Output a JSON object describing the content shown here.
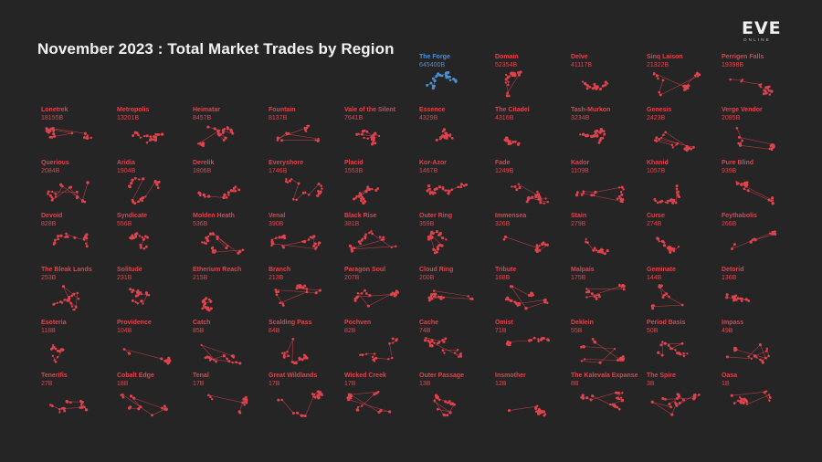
{
  "title": "November 2023 : Total Market Trades by Region",
  "logo": {
    "main": "EVE",
    "sub": "ONLINE"
  },
  "colors": {
    "background": "#252525",
    "region": "#e0434d",
    "highlight": "#4a8fd6",
    "title": "#f2f2f2"
  },
  "chart_data": {
    "type": "small-multiples",
    "title": "November 2023 : Total Market Trades by Region",
    "unit": "B",
    "highlight": "The Forge",
    "regions": [
      {
        "name": "The Forge",
        "value": "645400B"
      },
      {
        "name": "Domain",
        "value": "52354B"
      },
      {
        "name": "Delve",
        "value": "41117B"
      },
      {
        "name": "Sinq Laison",
        "value": "21322B"
      },
      {
        "name": "Perrigen Falls",
        "value": "19398B"
      },
      {
        "name": "Lonetrek",
        "value": "18155B"
      },
      {
        "name": "Metropolis",
        "value": "13201B"
      },
      {
        "name": "Heimatar",
        "value": "8457B"
      },
      {
        "name": "Fountain",
        "value": "8137B"
      },
      {
        "name": "Vale of the Silent",
        "value": "7641B"
      },
      {
        "name": "Essence",
        "value": "4329B"
      },
      {
        "name": "The Citadel",
        "value": "4316B"
      },
      {
        "name": "Tash-Murkon",
        "value": "3234B"
      },
      {
        "name": "Genesis",
        "value": "2423B"
      },
      {
        "name": "Verge Vendor",
        "value": "2095B"
      },
      {
        "name": "Querious",
        "value": "2084B"
      },
      {
        "name": "Aridia",
        "value": "1904B"
      },
      {
        "name": "Derelik",
        "value": "1806B"
      },
      {
        "name": "Everyshore",
        "value": "1746B"
      },
      {
        "name": "Placid",
        "value": "1553B"
      },
      {
        "name": "Kor-Azor",
        "value": "1467B"
      },
      {
        "name": "Fade",
        "value": "1249B"
      },
      {
        "name": "Kador",
        "value": "1109B"
      },
      {
        "name": "Khanid",
        "value": "1057B"
      },
      {
        "name": "Pure Blind",
        "value": "939B"
      },
      {
        "name": "Devoid",
        "value": "828B"
      },
      {
        "name": "Syndicate",
        "value": "556B"
      },
      {
        "name": "Molden Heath",
        "value": "536B"
      },
      {
        "name": "Venal",
        "value": "390B"
      },
      {
        "name": "Black Rise",
        "value": "381B"
      },
      {
        "name": "Outer Ring",
        "value": "359B"
      },
      {
        "name": "Immensea",
        "value": "326B"
      },
      {
        "name": "Stain",
        "value": "279B"
      },
      {
        "name": "Curse",
        "value": "274B"
      },
      {
        "name": "Feythabolis",
        "value": "266B"
      },
      {
        "name": "The Bleak Lands",
        "value": "253B"
      },
      {
        "name": "Solitude",
        "value": "231B"
      },
      {
        "name": "Etherium Reach",
        "value": "215B"
      },
      {
        "name": "Branch",
        "value": "213B"
      },
      {
        "name": "Paragon Soul",
        "value": "207B"
      },
      {
        "name": "Cloud Ring",
        "value": "200B"
      },
      {
        "name": "Tribute",
        "value": "188B"
      },
      {
        "name": "Malpais",
        "value": "175B"
      },
      {
        "name": "Geminate",
        "value": "144B"
      },
      {
        "name": "Detorid",
        "value": "136B"
      },
      {
        "name": "Esoteria",
        "value": "118B"
      },
      {
        "name": "Providence",
        "value": "104B"
      },
      {
        "name": "Catch",
        "value": "85B"
      },
      {
        "name": "Scalding Pass",
        "value": "84B"
      },
      {
        "name": "Pochven",
        "value": "82B"
      },
      {
        "name": "Cache",
        "value": "74B"
      },
      {
        "name": "Omist",
        "value": "71B"
      },
      {
        "name": "Deklein",
        "value": "55B"
      },
      {
        "name": "Period Basis",
        "value": "50B"
      },
      {
        "name": "Impass",
        "value": "49B"
      },
      {
        "name": "Tenerifis",
        "value": "27B"
      },
      {
        "name": "Cobalt Edge",
        "value": "18B"
      },
      {
        "name": "Tenal",
        "value": "17B"
      },
      {
        "name": "Great Wildlands",
        "value": "17B"
      },
      {
        "name": "Wicked Creek",
        "value": "17B"
      },
      {
        "name": "Outer Passage",
        "value": "13B"
      },
      {
        "name": "Insmother",
        "value": "12B"
      },
      {
        "name": "The Kalevala Expanse",
        "value": "8B"
      },
      {
        "name": "The Spire",
        "value": "3B"
      },
      {
        "name": "Oasa",
        "value": "1B"
      }
    ]
  }
}
